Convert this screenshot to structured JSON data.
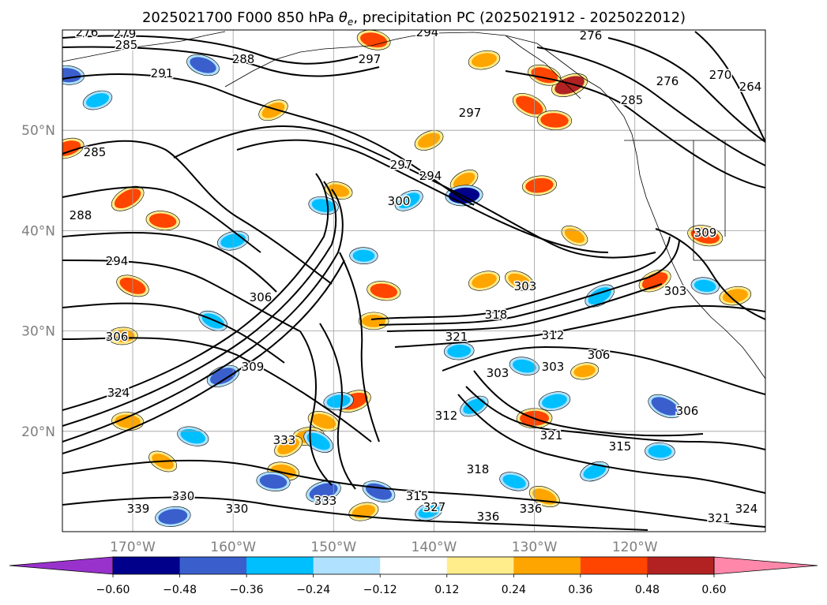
{
  "chart_data": {
    "type": "heatmap",
    "title_main": "2025021700 F000 850 hPa ",
    "title_sym": "θ",
    "title_sub": "e",
    "title_rest": ", precipitation PC (2025021912 - 2025022012)",
    "lon_ticks": [
      "170°W",
      "160°W",
      "150°W",
      "140°W",
      "130°W",
      "120°W"
    ],
    "lat_ticks": [
      "20°N",
      "30°N",
      "40°N",
      "50°N"
    ],
    "lon_tick_values": [
      -170,
      -160,
      -150,
      -140,
      -130,
      -120
    ],
    "lat_tick_values": [
      20,
      30,
      40,
      50
    ],
    "xlim": [
      -177,
      -107
    ],
    "ylim": [
      10,
      60
    ],
    "grid": true,
    "colorbar": {
      "orientation": "horizontal",
      "extend": "both",
      "levels": [
        -0.6,
        -0.48,
        -0.36,
        -0.24,
        -0.12,
        0.12,
        0.24,
        0.36,
        0.48,
        0.6
      ],
      "tick_labels": [
        "−0.60",
        "−0.48",
        "−0.36",
        "−0.24",
        "−0.12",
        "0.12",
        "0.24",
        "0.36",
        "0.48",
        "0.60"
      ],
      "colors": [
        "#9932cc",
        "#00008b",
        "#3a5fcd",
        "#00bfff",
        "#b0e2ff",
        "#ffffff",
        "#ffec8b",
        "#ffa500",
        "#ff4500",
        "#b22222",
        "#ff88aa"
      ]
    },
    "contour_labels": [
      "276",
      "279",
      "285",
      "288",
      "297",
      "294",
      "291",
      "297",
      "276",
      "270",
      "264",
      "285",
      "276",
      "285",
      "288",
      "294",
      "297",
      "294",
      "300",
      "303",
      "309",
      "306",
      "303",
      "306",
      "318",
      "321",
      "312",
      "303",
      "306",
      "303",
      "309",
      "306",
      "312",
      "321",
      "315",
      "318",
      "324",
      "315",
      "336",
      "333",
      "330",
      "327",
      "336",
      "339",
      "330",
      "333",
      "321",
      "324"
    ],
    "precip_cells": [
      {
        "lon": -170.5,
        "lat": 43.2,
        "value": 0.45
      },
      {
        "lon": -167.0,
        "lat": 41.0,
        "value": 0.4
      },
      {
        "lon": -176.5,
        "lat": 48.2,
        "value": 0.4
      },
      {
        "lon": -170.0,
        "lat": 34.5,
        "value": 0.4
      },
      {
        "lon": -171.0,
        "lat": 29.5,
        "value": 0.3
      },
      {
        "lon": -156.0,
        "lat": 52.0,
        "value": 0.32
      },
      {
        "lon": -146.0,
        "lat": 59.0,
        "value": 0.4
      },
      {
        "lon": -135.0,
        "lat": 57.0,
        "value": 0.35
      },
      {
        "lon": -130.5,
        "lat": 52.5,
        "value": 0.45
      },
      {
        "lon": -128.0,
        "lat": 51.0,
        "value": 0.42
      },
      {
        "lon": -126.5,
        "lat": 54.5,
        "value": 0.5
      },
      {
        "lon": -129.0,
        "lat": 55.5,
        "value": 0.4
      },
      {
        "lon": -129.5,
        "lat": 44.5,
        "value": 0.42
      },
      {
        "lon": -137.0,
        "lat": 45.0,
        "value": 0.3
      },
      {
        "lon": -145.0,
        "lat": 34.0,
        "value": 0.4
      },
      {
        "lon": -135.0,
        "lat": 35.0,
        "value": 0.35
      },
      {
        "lon": -131.5,
        "lat": 35.0,
        "value": 0.3
      },
      {
        "lon": -130.0,
        "lat": 21.3,
        "value": 0.45
      },
      {
        "lon": -118.0,
        "lat": 35.0,
        "value": 0.4
      },
      {
        "lon": -113.0,
        "lat": 39.5,
        "value": 0.45
      },
      {
        "lon": -110.0,
        "lat": 33.5,
        "value": 0.35
      },
      {
        "lon": -167.0,
        "lat": 17.0,
        "value": 0.3
      },
      {
        "lon": -170.5,
        "lat": 21.0,
        "value": 0.35
      },
      {
        "lon": -148.0,
        "lat": 23.0,
        "value": 0.45
      },
      {
        "lon": -151.0,
        "lat": 21.0,
        "value": 0.35
      },
      {
        "lon": -152.5,
        "lat": 19.5,
        "value": 0.35
      },
      {
        "lon": -154.5,
        "lat": 18.5,
        "value": 0.3
      },
      {
        "lon": -155.0,
        "lat": 16.0,
        "value": 0.35
      },
      {
        "lon": -147.0,
        "lat": 12.0,
        "value": 0.3
      },
      {
        "lon": -129.0,
        "lat": 13.5,
        "value": 0.35
      },
      {
        "lon": -146.0,
        "lat": 31.0,
        "value": 0.3
      },
      {
        "lon": -140.5,
        "lat": 49.0,
        "value": 0.3
      },
      {
        "lon": -149.5,
        "lat": 44.0,
        "value": 0.25
      },
      {
        "lon": -125.0,
        "lat": 26.0,
        "value": 0.25
      },
      {
        "lon": -126.0,
        "lat": 39.5,
        "value": 0.25
      },
      {
        "lon": -176.5,
        "lat": 55.5,
        "value": -0.4
      },
      {
        "lon": -173.5,
        "lat": 53.0,
        "value": -0.3
      },
      {
        "lon": -163.0,
        "lat": 56.5,
        "value": -0.4
      },
      {
        "lon": -137.0,
        "lat": 43.5,
        "value": -0.5
      },
      {
        "lon": -142.5,
        "lat": 43.0,
        "value": -0.3
      },
      {
        "lon": -151.0,
        "lat": 42.5,
        "value": -0.3
      },
      {
        "lon": -160.0,
        "lat": 39.0,
        "value": -0.35
      },
      {
        "lon": -162.0,
        "lat": 31.0,
        "value": -0.3
      },
      {
        "lon": -147.0,
        "lat": 37.5,
        "value": -0.25
      },
      {
        "lon": -161.0,
        "lat": 25.5,
        "value": -0.4
      },
      {
        "lon": -164.0,
        "lat": 19.5,
        "value": -0.35
      },
      {
        "lon": -149.5,
        "lat": 23.0,
        "value": -0.3
      },
      {
        "lon": -151.5,
        "lat": 19.0,
        "value": -0.35
      },
      {
        "lon": -156.0,
        "lat": 15.0,
        "value": -0.4
      },
      {
        "lon": -151.0,
        "lat": 14.0,
        "value": -0.45
      },
      {
        "lon": -145.5,
        "lat": 14.0,
        "value": -0.4
      },
      {
        "lon": -137.5,
        "lat": 28.0,
        "value": -0.3
      },
      {
        "lon": -136.0,
        "lat": 22.5,
        "value": -0.3
      },
      {
        "lon": -131.0,
        "lat": 26.5,
        "value": -0.3
      },
      {
        "lon": -128.0,
        "lat": 23.0,
        "value": -0.35
      },
      {
        "lon": -117.0,
        "lat": 22.5,
        "value": -0.45
      },
      {
        "lon": -117.5,
        "lat": 18.0,
        "value": -0.3
      },
      {
        "lon": -124.0,
        "lat": 16.0,
        "value": -0.3
      },
      {
        "lon": -132.0,
        "lat": 15.0,
        "value": -0.3
      },
      {
        "lon": -166.0,
        "lat": 11.5,
        "value": -0.45
      },
      {
        "lon": -123.5,
        "lat": 33.5,
        "value": -0.35
      },
      {
        "lon": -113.0,
        "lat": 34.5,
        "value": -0.25
      },
      {
        "lon": -140.5,
        "lat": 12.0,
        "value": -0.25
      }
    ]
  }
}
